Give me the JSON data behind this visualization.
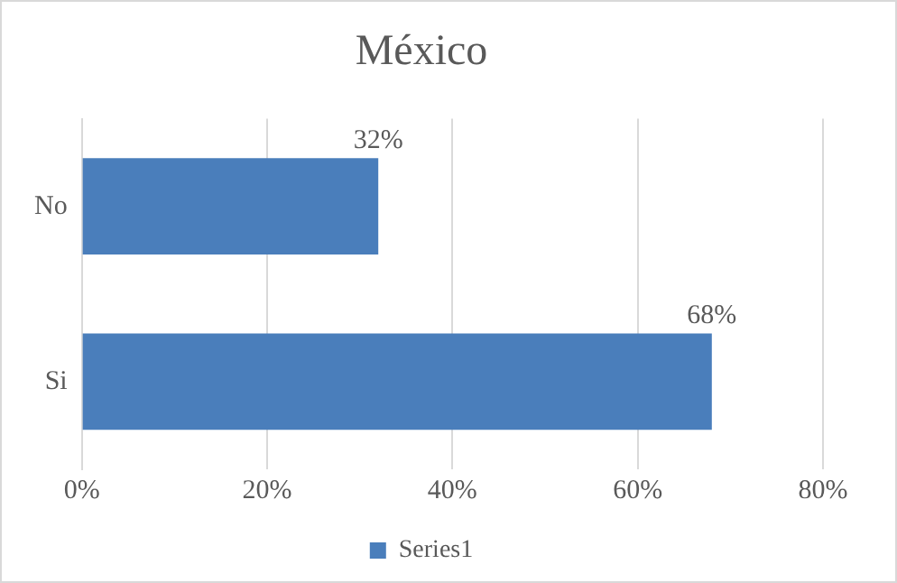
{
  "chart_data": {
    "type": "bar",
    "orientation": "horizontal",
    "title": "México",
    "categories": [
      "No",
      "Si"
    ],
    "series": [
      {
        "name": "Series1",
        "color": "#4a7ebb",
        "values": [
          32,
          68
        ],
        "value_labels": [
          "32%",
          "68%"
        ]
      }
    ],
    "xlim": [
      0,
      80
    ],
    "xticks": [
      {
        "value": 0,
        "label": "0%"
      },
      {
        "value": 20,
        "label": "20%"
      },
      {
        "value": 40,
        "label": "40%"
      },
      {
        "value": 60,
        "label": "60%"
      },
      {
        "value": 80,
        "label": "80%"
      }
    ],
    "grid": "x",
    "legend": "bottom"
  }
}
